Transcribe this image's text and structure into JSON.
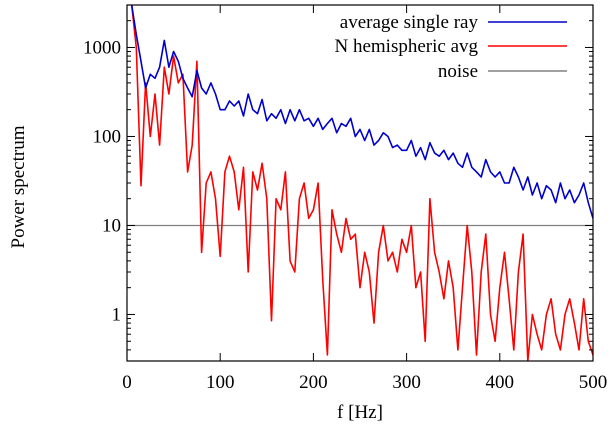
{
  "chart_data": {
    "type": "line",
    "xlabel": "f [Hz]",
    "ylabel": "Power spectrum",
    "xlim": [
      0,
      500
    ],
    "ylim": [
      0.3,
      3000
    ],
    "yscale": "log",
    "grid": false,
    "legend_position": "top-right",
    "xticks": [
      0,
      100,
      200,
      300,
      400,
      500
    ],
    "xtick_labels": [
      "0",
      "100",
      "200",
      "300",
      "400",
      "500"
    ],
    "yticks": [
      1,
      10,
      100,
      1000
    ],
    "ytick_labels": [
      "1",
      "10",
      "100",
      "1000"
    ],
    "series": [
      {
        "name": "average single ray",
        "color": "#0000cc",
        "x": [
          5,
          10,
          15,
          20,
          25,
          30,
          35,
          40,
          45,
          50,
          55,
          60,
          65,
          70,
          75,
          80,
          85,
          90,
          95,
          100,
          105,
          110,
          115,
          120,
          125,
          130,
          135,
          140,
          145,
          150,
          155,
          160,
          165,
          170,
          175,
          180,
          185,
          190,
          195,
          200,
          205,
          210,
          215,
          220,
          225,
          230,
          235,
          240,
          245,
          250,
          255,
          260,
          265,
          270,
          275,
          280,
          285,
          290,
          295,
          300,
          305,
          310,
          315,
          320,
          325,
          330,
          335,
          340,
          345,
          350,
          355,
          360,
          365,
          370,
          375,
          380,
          385,
          390,
          395,
          400,
          405,
          410,
          415,
          420,
          425,
          430,
          435,
          440,
          445,
          450,
          455,
          460,
          465,
          470,
          475,
          480,
          485,
          490,
          495,
          500
        ],
        "y": [
          3000,
          1400,
          700,
          350,
          500,
          450,
          600,
          1200,
          600,
          900,
          700,
          450,
          350,
          280,
          550,
          350,
          300,
          400,
          300,
          200,
          200,
          250,
          220,
          250,
          170,
          300,
          200,
          180,
          260,
          150,
          180,
          160,
          200,
          140,
          200,
          150,
          200,
          150,
          160,
          130,
          160,
          120,
          140,
          160,
          110,
          140,
          130,
          160,
          100,
          120,
          90,
          120,
          80,
          90,
          110,
          100,
          75,
          80,
          70,
          70,
          90,
          60,
          75,
          55,
          85,
          65,
          60,
          70,
          55,
          65,
          50,
          45,
          65,
          45,
          40,
          35,
          55,
          40,
          35,
          40,
          30,
          30,
          45,
          35,
          25,
          35,
          22,
          30,
          20,
          28,
          25,
          18,
          30,
          20,
          25,
          18,
          22,
          30,
          18,
          12
        ]
      },
      {
        "name": "N hemispheric avg",
        "color": "#ff0000",
        "x": [
          5,
          10,
          15,
          20,
          25,
          30,
          35,
          40,
          45,
          50,
          55,
          60,
          65,
          70,
          75,
          80,
          85,
          90,
          95,
          100,
          105,
          110,
          115,
          120,
          125,
          130,
          135,
          140,
          145,
          150,
          155,
          160,
          165,
          170,
          175,
          180,
          185,
          190,
          195,
          200,
          205,
          210,
          215,
          220,
          225,
          230,
          235,
          240,
          245,
          250,
          255,
          260,
          265,
          270,
          275,
          280,
          285,
          290,
          295,
          300,
          305,
          310,
          315,
          320,
          325,
          330,
          335,
          340,
          345,
          350,
          355,
          360,
          365,
          370,
          375,
          380,
          385,
          390,
          395,
          400,
          405,
          410,
          415,
          420,
          425,
          430,
          435,
          440,
          445,
          450,
          455,
          460,
          465,
          470,
          475,
          480,
          485,
          490,
          495,
          500
        ],
        "y": [
          3000,
          1000,
          28,
          400,
          100,
          300,
          80,
          600,
          300,
          800,
          400,
          500,
          40,
          80,
          700,
          5,
          30,
          40,
          20,
          4.5,
          40,
          60,
          40,
          15,
          45,
          3,
          40,
          25,
          50,
          20,
          0.85,
          20,
          15,
          40,
          4,
          3,
          20,
          30,
          12,
          15,
          30,
          2.5,
          0.35,
          15,
          8,
          5,
          12,
          7,
          8,
          2,
          5,
          3,
          0.8,
          5,
          10,
          4,
          5,
          3,
          7,
          5,
          10,
          2,
          3,
          0.5,
          20,
          5,
          3,
          1.5,
          4,
          2,
          0.4,
          2,
          10,
          3,
          0.35,
          3,
          8,
          1,
          0.5,
          2,
          5,
          1.5,
          0.4,
          3,
          8,
          0.3,
          1,
          0.6,
          0.4,
          1,
          1.5,
          0.6,
          0.4,
          1,
          1.5,
          0.8,
          0.4,
          1.5,
          0.5,
          0.35
        ]
      },
      {
        "name": "noise",
        "color": "#808080",
        "x": [
          0,
          500
        ],
        "y": [
          10,
          10
        ]
      }
    ]
  }
}
